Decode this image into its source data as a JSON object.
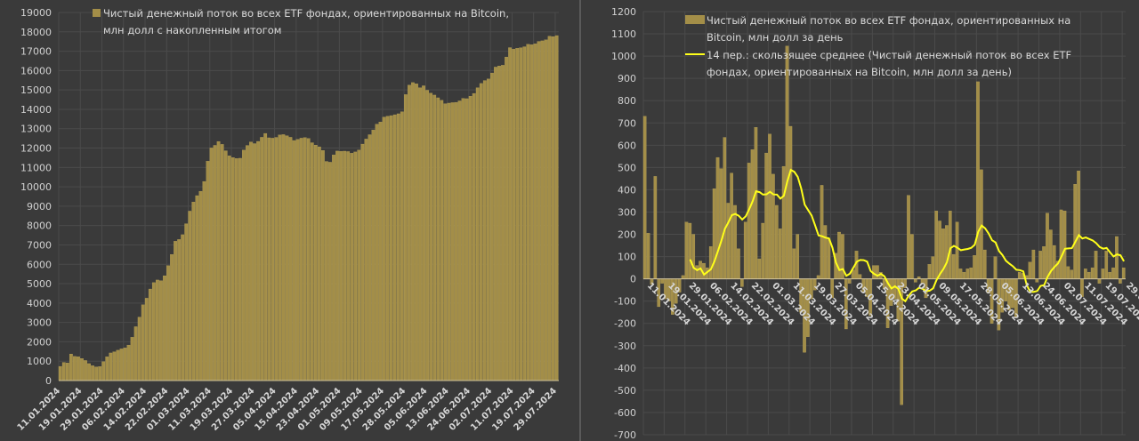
{
  "colors": {
    "background": "#3a3a3a",
    "grid": "#4b4b4b",
    "bar": "#a38e48",
    "bar_edge": "#c2ab5e",
    "ma_line": "#ffff1a",
    "text": "#d9d9d9",
    "divider": "#5a5a5a"
  },
  "chart_data": [
    {
      "type": "bar",
      "title": "",
      "legend": {
        "position": "top",
        "lines": [
          "Чистый денежный поток во всех ETF фондах, ориентированных на Bitcoin,",
          "млн долл с накопленным итогом"
        ]
      },
      "ylim": [
        0,
        19000
      ],
      "ystep": 1000,
      "grid": true,
      "derived_from": "cumulative sum of daily net flow",
      "date_labels": [
        "11.01.2024",
        "19.01.2024",
        "29.01.2024",
        "06.02.2024",
        "14.02.2024",
        "22.02.2024",
        "01.03.2024",
        "11.03.2024",
        "19.03.2024",
        "27.03.2024",
        "05.04.2024",
        "15.04.2024",
        "23.04.2024",
        "01.05.2024",
        "09.05.2024",
        "17.05.2024",
        "28.05.2024",
        "05.06.2024",
        "13.06.2024",
        "24.06.2024",
        "02.07.2024",
        "11.07.2024",
        "19.07.2024",
        "29.07.2024"
      ]
    },
    {
      "type": "bar+line",
      "legend": {
        "position": "top",
        "bar_lines": [
          "Чистый денежный поток во всех ETF фондах, ориентированных на",
          "Bitcoin, млн долл за день"
        ],
        "line_lines": [
          "14 пер.: скользящее среднее (Чистый денежный поток во всех ETF",
          "фондах, ориентированных на Bitcoin, млн долл за день)"
        ]
      },
      "ylim": [
        -700,
        1200
      ],
      "ystep": 100,
      "grid": true,
      "moving_average_period": 14,
      "label_every": 6,
      "values": [
        730,
        205,
        -25,
        460,
        -125,
        -20,
        -90,
        -100,
        -160,
        -110,
        -60,
        15,
        255,
        250,
        200,
        60,
        80,
        70,
        50,
        145,
        405,
        545,
        495,
        635,
        340,
        475,
        330,
        135,
        -35,
        255,
        520,
        580,
        680,
        90,
        250,
        565,
        650,
        470,
        330,
        225,
        505,
        1045,
        685,
        135,
        200,
        -150,
        -330,
        -260,
        -90,
        -50,
        15,
        420,
        240,
        180,
        -85,
        115,
        210,
        200,
        -225,
        -20,
        40,
        125,
        20,
        -60,
        -80,
        -165,
        60,
        60,
        30,
        -45,
        -220,
        -120,
        -90,
        -190,
        -565,
        -40,
        375,
        200,
        -15,
        10,
        -20,
        -85,
        65,
        100,
        305,
        260,
        225,
        240,
        305,
        110,
        255,
        45,
        30,
        45,
        50,
        105,
        885,
        490,
        130,
        -65,
        -200,
        100,
        -230,
        -150,
        -100,
        -140,
        -130,
        -175,
        30,
        25,
        15,
        75,
        130,
        -15,
        125,
        145,
        295,
        220,
        150,
        80,
        310,
        305,
        55,
        40,
        425,
        485,
        -80,
        45,
        30,
        50,
        125,
        -20,
        45,
        125,
        30,
        50,
        190,
        -20,
        50
      ]
    }
  ]
}
